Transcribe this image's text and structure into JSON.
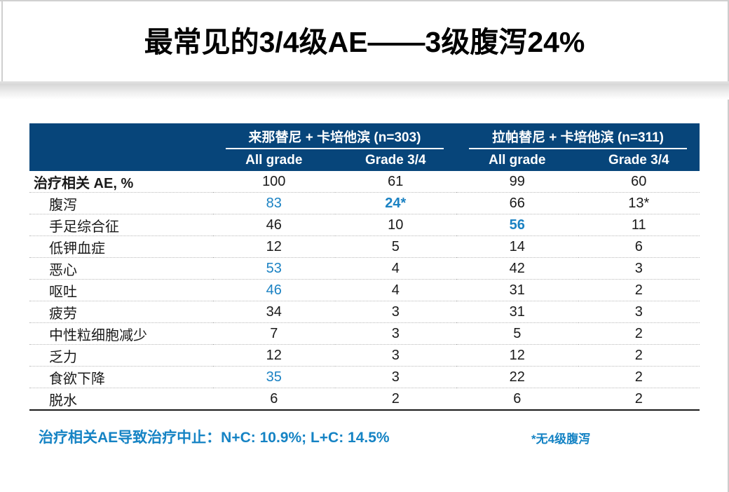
{
  "title": "最常见的3/4级AE——3级腹泻24%",
  "colors": {
    "header_bg": "#07457a",
    "accent_blue": "#1b82c3",
    "footnote_blue": "#1583c4",
    "body_text": "#1a1a1a"
  },
  "table": {
    "groups": [
      {
        "label": "来那替尼 + 卡培他滨 (n=303)"
      },
      {
        "label": "拉帕替尼 + 卡培他滨 (n=311)"
      }
    ],
    "subheaders": [
      "All grade",
      "Grade 3/4",
      "All grade",
      "Grade 3/4"
    ],
    "rows": [
      {
        "label": "治疗相关 AE, %",
        "bold": true,
        "indent": false,
        "cells": [
          {
            "v": "100"
          },
          {
            "v": "61"
          },
          {
            "v": "99"
          },
          {
            "v": "60"
          }
        ]
      },
      {
        "label": "腹泻",
        "indent": true,
        "cells": [
          {
            "v": "83",
            "hl": true
          },
          {
            "v": "24*",
            "hl": true,
            "b": true
          },
          {
            "v": "66"
          },
          {
            "v": "13*"
          }
        ]
      },
      {
        "label": "手足综合征",
        "indent": true,
        "cells": [
          {
            "v": "46"
          },
          {
            "v": "10"
          },
          {
            "v": "56",
            "hl": true,
            "b": true
          },
          {
            "v": "11"
          }
        ]
      },
      {
        "label": "低钾血症",
        "indent": true,
        "cells": [
          {
            "v": "12"
          },
          {
            "v": "5"
          },
          {
            "v": "14"
          },
          {
            "v": "6"
          }
        ]
      },
      {
        "label": "恶心",
        "indent": true,
        "cells": [
          {
            "v": "53",
            "hl": true
          },
          {
            "v": "4"
          },
          {
            "v": "42"
          },
          {
            "v": "3"
          }
        ]
      },
      {
        "label": "呕吐",
        "indent": true,
        "cells": [
          {
            "v": "46",
            "hl": true
          },
          {
            "v": "4"
          },
          {
            "v": "31"
          },
          {
            "v": "2"
          }
        ]
      },
      {
        "label": "疲劳",
        "indent": true,
        "cells": [
          {
            "v": "34"
          },
          {
            "v": "3"
          },
          {
            "v": "31"
          },
          {
            "v": "3"
          }
        ]
      },
      {
        "label": "中性粒细胞减少",
        "indent": true,
        "cells": [
          {
            "v": "7"
          },
          {
            "v": "3"
          },
          {
            "v": "5"
          },
          {
            "v": "2"
          }
        ]
      },
      {
        "label": "乏力",
        "indent": true,
        "cells": [
          {
            "v": "12"
          },
          {
            "v": "3"
          },
          {
            "v": "12"
          },
          {
            "v": "2"
          }
        ]
      },
      {
        "label": "食欲下降",
        "indent": true,
        "cells": [
          {
            "v": "35",
            "hl": true
          },
          {
            "v": "3"
          },
          {
            "v": "22"
          },
          {
            "v": "2"
          }
        ]
      },
      {
        "label": "脱水",
        "indent": true,
        "cells": [
          {
            "v": "6"
          },
          {
            "v": "2"
          },
          {
            "v": "6"
          },
          {
            "v": "2"
          }
        ]
      }
    ]
  },
  "footnotes": {
    "left": "治疗相关AE导致治疗中止：N+C: 10.9%;   L+C: 14.5%",
    "right": "*无4级腹泻"
  }
}
